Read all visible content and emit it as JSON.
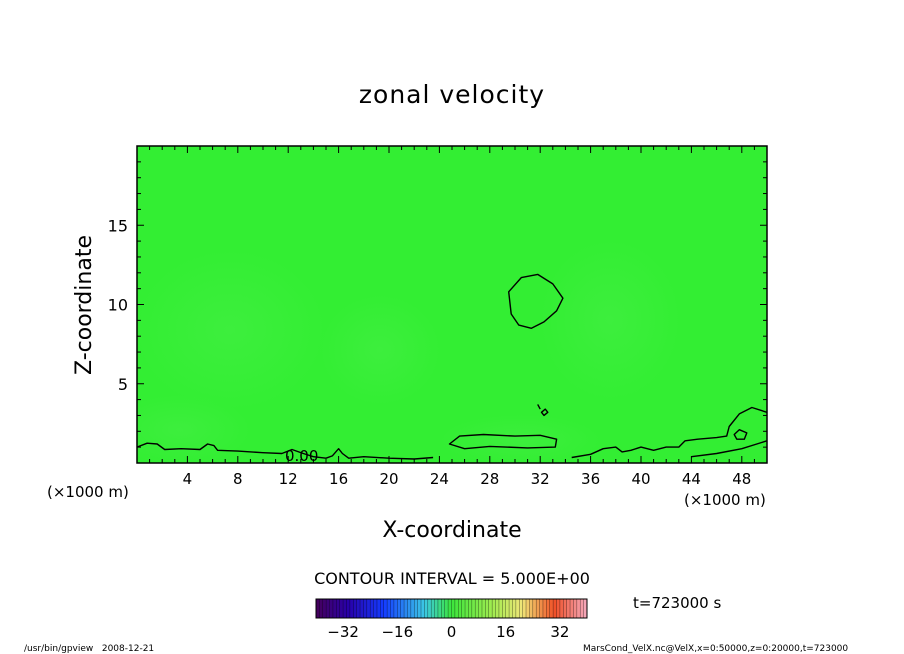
{
  "chart_data": {
    "type": "heatmap",
    "title": "zonal velocity",
    "xlabel": "X-coordinate",
    "ylabel": "Z-coordinate",
    "x_unit_label": "(×1000 m)",
    "y_unit_label": "(×1000 m)",
    "xlim": [
      0,
      50
    ],
    "ylim": [
      0,
      20
    ],
    "x_ticks": [
      "4",
      "8",
      "12",
      "16",
      "20",
      "24",
      "28",
      "32",
      "36",
      "40",
      "44",
      "48"
    ],
    "y_ticks": [
      "5",
      "10",
      "15"
    ],
    "contour_interval_label": "CONTOUR INTERVAL = 5.000E+00",
    "contour_label": "0.00",
    "time_label": "t=723000 s",
    "colorbar": {
      "range": [
        -40,
        40
      ],
      "tick_labels": [
        "-32",
        "-16",
        "0",
        "16",
        "32"
      ]
    },
    "field_color": "#33ee33",
    "contours": [
      {
        "level": 0,
        "kind": "closed",
        "points": [
          [
            29.5,
            10.8
          ],
          [
            30.5,
            11.7
          ],
          [
            31.8,
            11.9
          ],
          [
            33,
            11.3
          ],
          [
            33.8,
            10.4
          ],
          [
            33.3,
            9.6
          ],
          [
            32.3,
            8.9
          ],
          [
            31.3,
            8.5
          ],
          [
            30.3,
            8.7
          ],
          [
            29.7,
            9.4
          ],
          [
            29.5,
            10.8
          ]
        ]
      },
      {
        "level": 0,
        "kind": "closed",
        "points": [
          [
            24.8,
            1.2
          ],
          [
            25.6,
            1.7
          ],
          [
            27.5,
            1.8
          ],
          [
            30,
            1.7
          ],
          [
            32,
            1.75
          ],
          [
            33.3,
            1.5
          ],
          [
            33.2,
            1.0
          ],
          [
            31,
            0.95
          ],
          [
            28,
            1.05
          ],
          [
            26,
            0.9
          ],
          [
            24.8,
            1.2
          ]
        ]
      },
      {
        "level": 0,
        "kind": "closed",
        "points": [
          [
            32.1,
            3.2
          ],
          [
            32.4,
            3.4
          ],
          [
            32.6,
            3.2
          ],
          [
            32.3,
            3.0
          ],
          [
            32.1,
            3.2
          ]
        ]
      },
      {
        "level": 0,
        "kind": "closed",
        "points": [
          [
            47.4,
            1.8
          ],
          [
            47.8,
            2.1
          ],
          [
            48.4,
            1.9
          ],
          [
            48.2,
            1.5
          ],
          [
            47.6,
            1.5
          ],
          [
            47.4,
            1.8
          ]
        ]
      },
      {
        "level": 0,
        "kind": "open",
        "points": [
          [
            0,
            1.0
          ],
          [
            0.8,
            1.25
          ],
          [
            1.6,
            1.2
          ],
          [
            2.2,
            0.85
          ],
          [
            3.5,
            0.9
          ],
          [
            5,
            0.85
          ],
          [
            5.6,
            1.2
          ],
          [
            6.1,
            1.1
          ],
          [
            6.4,
            0.8
          ],
          [
            8,
            0.75
          ],
          [
            10,
            0.65
          ],
          [
            11.5,
            0.6
          ],
          [
            12.3,
            0.85
          ],
          [
            13.2,
            0.6
          ],
          [
            14,
            0.4
          ],
          [
            15,
            0.3
          ],
          [
            15.5,
            0.45
          ],
          [
            16,
            0.9
          ],
          [
            16.3,
            0.6
          ],
          [
            16.8,
            0.3
          ],
          [
            18,
            0.4
          ],
          [
            20,
            0.3
          ],
          [
            22,
            0.25
          ],
          [
            23.5,
            0.35
          ]
        ]
      },
      {
        "level": 0,
        "kind": "open",
        "points": [
          [
            31.8,
            3.7
          ],
          [
            32.0,
            3.4
          ]
        ]
      },
      {
        "level": 0,
        "kind": "open",
        "points": [
          [
            34.5,
            0.35
          ],
          [
            36,
            0.55
          ],
          [
            37,
            0.9
          ],
          [
            38,
            1.0
          ],
          [
            38.5,
            0.7
          ],
          [
            39.2,
            0.8
          ],
          [
            40,
            1.0
          ],
          [
            41,
            0.8
          ],
          [
            42,
            1.0
          ],
          [
            43,
            1.0
          ],
          [
            43.5,
            1.4
          ],
          [
            44.5,
            1.5
          ],
          [
            46,
            1.6
          ],
          [
            46.8,
            1.7
          ],
          [
            47,
            2.3
          ],
          [
            47.8,
            3.1
          ],
          [
            48.8,
            3.5
          ],
          [
            50,
            3.2
          ]
        ]
      },
      {
        "level": 0,
        "kind": "open",
        "points": [
          [
            44,
            0.4
          ],
          [
            46,
            0.6
          ],
          [
            48,
            0.9
          ],
          [
            50,
            1.4
          ]
        ]
      }
    ],
    "footer_left": "/usr/bin/gpview   2008-12-21",
    "footer_right": "MarsCond_VelX.nc@VelX,x=0:50000,z=0:20000,t=723000"
  }
}
